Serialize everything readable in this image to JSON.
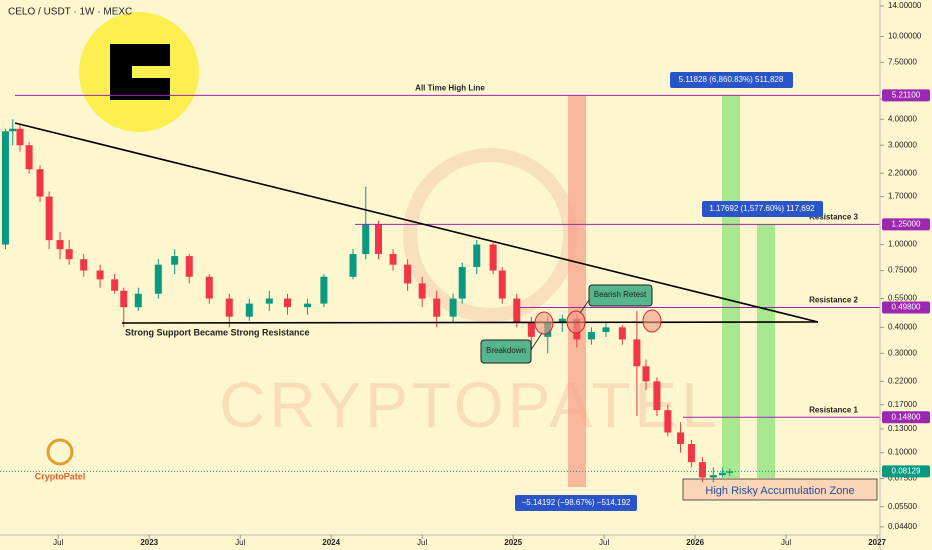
{
  "chart_data": {
    "type": "candlestick",
    "title": "CELO / USDT · 1W · MEXC",
    "log_scale": true,
    "grid": false,
    "up_color": "#089981",
    "down_color": "#f23645",
    "xlim": [
      2022.18,
      2027.016
    ],
    "ylim": [
      0.0402,
      14.96
    ],
    "xticks": [
      {
        "value": 2022.5,
        "label": "Jul"
      },
      2023,
      {
        "value": 2023.5,
        "label": "Jul"
      },
      2024,
      {
        "value": 2024.5,
        "label": "Jul"
      },
      2025,
      {
        "value": 2025.5,
        "label": "Jul"
      },
      2026,
      {
        "value": 2026.5,
        "label": "Jul"
      },
      2027
    ],
    "yticks": [
      {
        "value": 14,
        "label": "14.00000"
      },
      {
        "value": 10,
        "label": "10.00000"
      },
      {
        "value": 7.5,
        "label": "7.50000"
      },
      {
        "value": 5,
        "label": "5.00000"
      },
      {
        "value": 4,
        "label": "4.00000"
      },
      {
        "value": 3,
        "label": "3.00000"
      },
      {
        "value": 2.2,
        "label": "2.20000"
      },
      {
        "value": 1.7,
        "label": "1.70000"
      },
      {
        "value": 1,
        "label": "1.00000"
      },
      {
        "value": 0.75,
        "label": "0.75000"
      },
      {
        "value": 0.55,
        "label": "0.55000"
      },
      {
        "value": 0.4,
        "label": "0.40000"
      },
      {
        "value": 0.3,
        "label": "0.30000"
      },
      {
        "value": 0.22,
        "label": "0.22000"
      },
      {
        "value": 0.17,
        "label": "0.17000"
      },
      {
        "value": 0.13,
        "label": "0.13000"
      },
      {
        "value": 0.1,
        "label": "0.10000"
      },
      {
        "value": 0.075,
        "label": "0.07500"
      },
      {
        "value": 0.055,
        "label": "0.05500"
      },
      {
        "value": 0.044,
        "label": "0.04400"
      }
    ],
    "candles": {
      "x": [
        2022.21,
        2022.25,
        2022.29,
        2022.34,
        2022.4,
        2022.45,
        2022.51,
        2022.56,
        2022.64,
        2022.73,
        2022.81,
        2022.86,
        2022.94,
        2023.05,
        2023.14,
        2023.22,
        2023.33,
        2023.44,
        2023.55,
        2023.66,
        2023.76,
        2023.87,
        2023.96,
        2024.12,
        2024.19,
        2024.26,
        2024.34,
        2024.42,
        2024.5,
        2024.58,
        2024.67,
        2024.72,
        2024.8,
        2024.89,
        2024.94,
        2025.02,
        2025.1,
        2025.19,
        2025.27,
        2025.35,
        2025.43,
        2025.51,
        2025.6,
        2025.68,
        2025.73,
        2025.79,
        2025.85,
        2025.92,
        2025.98,
        2026.04,
        2026.1,
        2026.15,
        2026.19
      ],
      "open": [
        1.0,
        3.5,
        3.6,
        3.0,
        2.3,
        1.7,
        1.05,
        0.95,
        0.85,
        0.75,
        0.68,
        0.6,
        0.5,
        0.58,
        0.8,
        0.88,
        0.7,
        0.55,
        0.45,
        0.52,
        0.55,
        0.5,
        0.52,
        0.7,
        0.9,
        1.25,
        0.9,
        0.8,
        0.65,
        0.55,
        0.45,
        0.55,
        0.78,
        1.0,
        0.75,
        0.55,
        0.42,
        0.36,
        0.42,
        0.44,
        0.35,
        0.38,
        0.4,
        0.35,
        0.26,
        0.22,
        0.16,
        0.125,
        0.11,
        0.09,
        0.076,
        0.078,
        0.08
      ],
      "high": [
        3.6,
        4.0,
        3.8,
        3.1,
        2.4,
        1.8,
        1.15,
        1.05,
        0.9,
        0.8,
        0.72,
        0.62,
        0.62,
        0.85,
        0.95,
        0.9,
        0.72,
        0.58,
        0.55,
        0.6,
        0.58,
        0.55,
        0.72,
        0.95,
        1.9,
        1.3,
        0.95,
        0.85,
        0.7,
        0.6,
        0.58,
        0.82,
        1.05,
        1.02,
        0.78,
        0.58,
        0.45,
        0.45,
        0.46,
        0.46,
        0.4,
        0.42,
        0.41,
        0.48,
        0.28,
        0.23,
        0.17,
        0.14,
        0.115,
        0.095,
        0.085,
        0.085,
        0.084
      ],
      "low": [
        0.95,
        3.0,
        2.8,
        2.2,
        1.6,
        0.95,
        0.85,
        0.8,
        0.7,
        0.62,
        0.58,
        0.4,
        0.48,
        0.55,
        0.72,
        0.65,
        0.52,
        0.4,
        0.43,
        0.48,
        0.46,
        0.46,
        0.5,
        0.68,
        0.85,
        0.85,
        0.75,
        0.6,
        0.5,
        0.4,
        0.42,
        0.52,
        0.72,
        0.72,
        0.52,
        0.4,
        0.32,
        0.3,
        0.38,
        0.32,
        0.33,
        0.36,
        0.33,
        0.15,
        0.2,
        0.15,
        0.12,
        0.1,
        0.085,
        0.072,
        0.072,
        0.076,
        0.077
      ],
      "close": [
        3.5,
        3.6,
        3.0,
        2.3,
        1.7,
        1.05,
        0.95,
        0.85,
        0.75,
        0.68,
        0.6,
        0.5,
        0.58,
        0.8,
        0.88,
        0.7,
        0.55,
        0.45,
        0.52,
        0.55,
        0.5,
        0.52,
        0.7,
        0.9,
        1.25,
        0.9,
        0.8,
        0.65,
        0.55,
        0.45,
        0.55,
        0.78,
        1.0,
        0.75,
        0.55,
        0.42,
        0.36,
        0.42,
        0.44,
        0.35,
        0.38,
        0.4,
        0.35,
        0.26,
        0.22,
        0.16,
        0.125,
        0.11,
        0.09,
        0.076,
        0.078,
        0.08,
        0.08129
      ]
    },
    "levels": [
      {
        "name": "All Time High Line",
        "value": 5.211,
        "label": "5.21100",
        "color": "#9c27b0"
      },
      {
        "name": "Resistance 3",
        "value": 1.25,
        "label": "1.25000",
        "color": "#9c27b0"
      },
      {
        "name": "Resistance 2",
        "value": 0.498,
        "label": "0.49800",
        "color": "#9c27b0"
      },
      {
        "name": "Resistance 1",
        "value": 0.148,
        "label": "0.14800",
        "color": "#9c27b0"
      }
    ],
    "last_price": {
      "value": 0.08129,
      "label": "0.08129",
      "color": "#089981"
    },
    "annotations": {
      "support": "Strong Support Became Strong Resistance",
      "breakdown": "Breakdown",
      "retest": "Bearish Retest",
      "zone": "High Risky Accumulation Zone",
      "measure_top": "5.11828 (6,860.83%) 511,828",
      "measure_mid": "1.17692 (1,577.60%) 117,692",
      "measure_low": "−5.14192 (−98.67%) −514,192",
      "brand": "CryptoPatel",
      "watermark": "CRYPTOPATEL"
    }
  }
}
